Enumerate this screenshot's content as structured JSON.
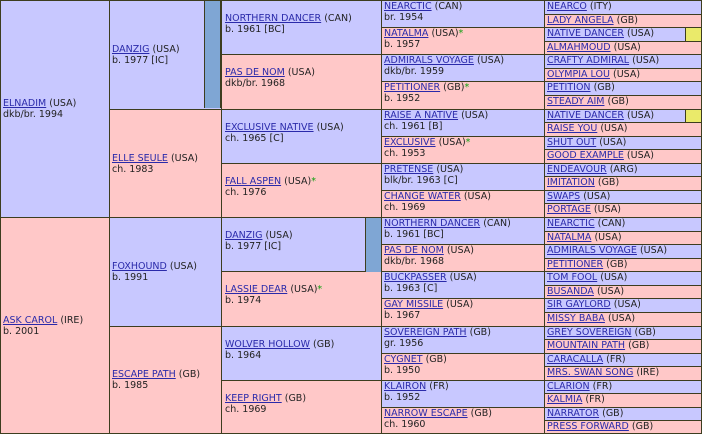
{
  "g1": [
    {
      "name": "ELNADIM",
      "country": "(USA)",
      "info": "dkb/br. 1994",
      "sex": "m"
    },
    {
      "name": "ASK CAROL",
      "country": "(IRE)",
      "info": "b. 2001",
      "sex": "f"
    }
  ],
  "g2": [
    {
      "name": "DANZIG",
      "country": "(USA)",
      "info": "b. 1977 [IC]",
      "sex": "m"
    },
    {
      "name": "ELLE SEULE",
      "country": "(USA)",
      "info": "ch. 1983",
      "sex": "f"
    },
    {
      "name": "FOXHOUND",
      "country": "(USA)",
      "info": "b. 1991",
      "sex": "m"
    },
    {
      "name": "ESCAPE PATH",
      "country": "(GB)",
      "info": "b. 1985",
      "sex": "f"
    }
  ],
  "g3": [
    {
      "name": "NORTHERN DANCER",
      "country": "(CAN)",
      "info": "b. 1961 [BC]",
      "sex": "m"
    },
    {
      "name": "PAS DE NOM",
      "country": "(USA)",
      "info": "dkb/br. 1968",
      "sex": "f"
    },
    {
      "name": "EXCLUSIVE NATIVE",
      "country": "(USA)",
      "info": "ch. 1965 [C]",
      "sex": "m"
    },
    {
      "name": "FALL ASPEN",
      "country": "(USA)",
      "star": "*",
      "info": "ch. 1976",
      "sex": "f"
    },
    {
      "name": "DANZIG",
      "country": "(USA)",
      "info": "b. 1977 [IC]",
      "sex": "m"
    },
    {
      "name": "LASSIE DEAR",
      "country": "(USA)",
      "star": "*",
      "info": "b. 1974",
      "sex": "f"
    },
    {
      "name": "WOLVER HOLLOW",
      "country": "(GB)",
      "info": "b. 1964",
      "sex": "m"
    },
    {
      "name": "KEEP RIGHT",
      "country": "(GB)",
      "info": "ch. 1969",
      "sex": "f"
    }
  ],
  "g4": [
    {
      "name": "NEARCTIC",
      "country": "(CAN)",
      "info": "br. 1954",
      "sex": "m"
    },
    {
      "name": "NATALMA",
      "country": "(USA)",
      "star": "*",
      "info": "b. 1957",
      "sex": "f"
    },
    {
      "name": "ADMIRALS VOYAGE",
      "country": "(USA)",
      "info": "dkb/br. 1959",
      "sex": "m"
    },
    {
      "name": "PETITIONER",
      "country": "(GB)",
      "star": "*",
      "info": "b. 1952",
      "sex": "f"
    },
    {
      "name": "RAISE A NATIVE",
      "country": "(USA)",
      "info": "ch. 1961 [B]",
      "sex": "m"
    },
    {
      "name": "EXCLUSIVE",
      "country": "(USA)",
      "star": "*",
      "info": "ch. 1953",
      "sex": "f"
    },
    {
      "name": "PRETENSE",
      "country": "(USA)",
      "info": "blk/br. 1963 [C]",
      "sex": "m"
    },
    {
      "name": "CHANGE WATER",
      "country": "(USA)",
      "info": "ch. 1969",
      "sex": "f"
    },
    {
      "name": "NORTHERN DANCER",
      "country": "(CAN)",
      "info": "b. 1961 [BC]",
      "sex": "m"
    },
    {
      "name": "PAS DE NOM",
      "country": "(USA)",
      "info": "dkb/br. 1968",
      "sex": "f"
    },
    {
      "name": "BUCKPASSER",
      "country": "(USA)",
      "info": "b. 1963 [C]",
      "sex": "m"
    },
    {
      "name": "GAY MISSILE",
      "country": "(USA)",
      "info": "b. 1967",
      "sex": "f"
    },
    {
      "name": "SOVEREIGN PATH",
      "country": "(GB)",
      "info": "gr. 1956",
      "sex": "m"
    },
    {
      "name": "CYGNET",
      "country": "(GB)",
      "info": "b. 1950",
      "sex": "f"
    },
    {
      "name": "KLAIRON",
      "country": "(FR)",
      "info": "b. 1952",
      "sex": "m"
    },
    {
      "name": "NARROW ESCAPE",
      "country": "(GB)",
      "info": "ch. 1960",
      "sex": "f"
    }
  ],
  "g5": [
    {
      "name": "NEARCO",
      "country": "(ITY)",
      "sex": "m"
    },
    {
      "name": "LADY ANGELA",
      "country": "(GB)",
      "sex": "f"
    },
    {
      "name": "NATIVE DANCER",
      "country": "(USA)",
      "sex": "m",
      "highlight": true
    },
    {
      "name": "ALMAHMOUD",
      "country": "(USA)",
      "sex": "f"
    },
    {
      "name": "CRAFTY ADMIRAL",
      "country": "(USA)",
      "sex": "m"
    },
    {
      "name": "OLYMPIA LOU",
      "country": "(USA)",
      "sex": "f"
    },
    {
      "name": "PETITION",
      "country": "(GB)",
      "sex": "m"
    },
    {
      "name": "STEADY AIM",
      "country": "(GB)",
      "sex": "f"
    },
    {
      "name": "NATIVE DANCER",
      "country": "(USA)",
      "sex": "m",
      "highlight": true
    },
    {
      "name": "RAISE YOU",
      "country": "(USA)",
      "sex": "f"
    },
    {
      "name": "SHUT OUT",
      "country": "(USA)",
      "sex": "m"
    },
    {
      "name": "GOOD EXAMPLE",
      "country": "(USA)",
      "sex": "f"
    },
    {
      "name": "ENDEAVOUR",
      "country": "(ARG)",
      "sex": "m"
    },
    {
      "name": "IMITATION",
      "country": "(GB)",
      "sex": "f"
    },
    {
      "name": "SWAPS",
      "country": "(USA)",
      "sex": "m"
    },
    {
      "name": "PORTAGE",
      "country": "(USA)",
      "sex": "f"
    },
    {
      "name": "NEARCTIC",
      "country": "(CAN)",
      "sex": "m"
    },
    {
      "name": "NATALMA",
      "country": "(USA)",
      "sex": "f"
    },
    {
      "name": "ADMIRALS VOYAGE",
      "country": "(USA)",
      "sex": "m"
    },
    {
      "name": "PETITIONER",
      "country": "(GB)",
      "sex": "f"
    },
    {
      "name": "TOM FOOL",
      "country": "(USA)",
      "sex": "m"
    },
    {
      "name": "BUSANDA",
      "country": "(USA)",
      "sex": "f"
    },
    {
      "name": "SIR GAYLORD",
      "country": "(USA)",
      "sex": "m"
    },
    {
      "name": "MISSY BABA",
      "country": "(USA)",
      "sex": "f"
    },
    {
      "name": "GREY SOVEREIGN",
      "country": "(GB)",
      "sex": "m"
    },
    {
      "name": "MOUNTAIN PATH",
      "country": "(GB)",
      "sex": "f"
    },
    {
      "name": "CARACALLA",
      "country": "(FR)",
      "sex": "m"
    },
    {
      "name": "MRS. SWAN SONG",
      "country": "(IRE)",
      "sex": "f"
    },
    {
      "name": "CLARION",
      "country": "(FR)",
      "sex": "m"
    },
    {
      "name": "KALMIA",
      "country": "(FR)",
      "sex": "f"
    },
    {
      "name": "NARRATOR",
      "country": "(GB)",
      "sex": "m"
    },
    {
      "name": "PRESS FORWARD",
      "country": "(GB)",
      "sex": "f"
    }
  ],
  "colors": {
    "male": "#c8c8ff",
    "female": "#ffc8c8",
    "border": "#3d3d1f",
    "link": "#2a2aaa",
    "star": "#10a010",
    "dup_bar": "#7fa6d4",
    "highlight": "#eaea6a"
  }
}
